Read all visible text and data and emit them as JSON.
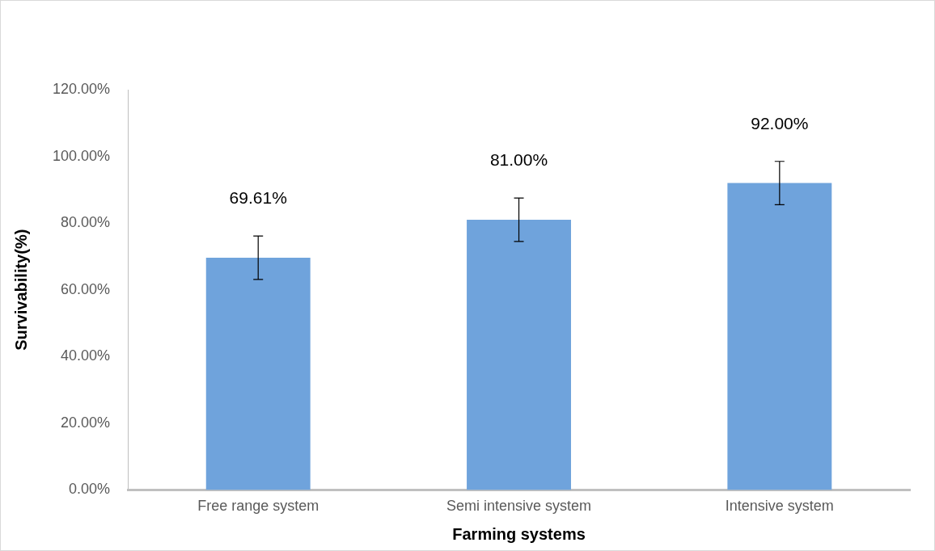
{
  "chart_data": {
    "type": "bar",
    "xlabel": "Farming systems",
    "ylabel": "Survivability(%)",
    "categories": [
      "Free range system",
      "Semi intensive system",
      "Intensive system"
    ],
    "values": [
      69.61,
      81,
      92
    ],
    "color": "#6fa3dc",
    "errors": [
      6.5,
      6.5,
      6.5
    ],
    "value_labels": [
      "69.61%",
      "81.00%",
      "92.00%"
    ],
    "ylim": [
      0,
      120
    ],
    "yticks": [
      {
        "value": 0,
        "label": "0.00%"
      },
      {
        "value": 20,
        "label": "20.00%"
      },
      {
        "value": 40,
        "label": "40.00%"
      },
      {
        "value": 60,
        "label": "60.00%"
      },
      {
        "value": 80,
        "label": "80.00%"
      },
      {
        "value": 100,
        "label": "100.00%"
      },
      {
        "value": 120,
        "label": "120.00%"
      }
    ],
    "grid": false,
    "legend": false
  }
}
